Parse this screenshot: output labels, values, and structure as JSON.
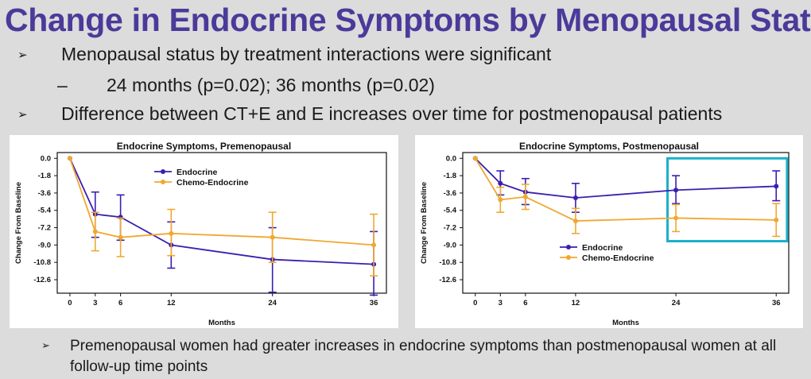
{
  "slide": {
    "title": "Change in Endocrine Symptoms by Menopausal Status",
    "bullets": [
      {
        "level": 1,
        "marker": "➢",
        "text": "Menopausal status by treatment interactions were significant"
      },
      {
        "level": 2,
        "marker": "–",
        "text": "24 months (p=0.02); 36 months (p=0.02)"
      },
      {
        "level": 1,
        "marker": "➢",
        "text": "Difference between CT+E and E increases over time for postmenopausal patients"
      }
    ],
    "footer_bullet": {
      "marker": "➢",
      "text": "Premenopausal women had greater increases in endocrine symptoms than postmenopausal women at all follow-up time points"
    }
  },
  "colors": {
    "endocrine": "#3a1fb0",
    "chemo_endocrine": "#f0a830",
    "highlight_box": "#1ab0c8",
    "title": "#4b3a9a"
  },
  "chart_data": [
    {
      "type": "line",
      "title": "Endocrine Symptoms, Premenopausal",
      "xlabel": "Months",
      "ylabel": "Change From Baseline",
      "x": [
        0,
        3,
        6,
        12,
        24,
        36
      ],
      "xticks": [
        "0",
        "3",
        "6",
        "12",
        "24",
        "36"
      ],
      "yticks": [
        "0.0",
        "-1.8",
        "-3.6",
        "-5.4",
        "-7.2",
        "-9.0",
        "-10.8",
        "-12.6"
      ],
      "yticks_values": [
        0.0,
        -1.8,
        -3.6,
        -5.4,
        -7.2,
        -9.0,
        -10.8,
        -12.6
      ],
      "ylim": [
        -14.0,
        0.6
      ],
      "xlim": [
        -1.5,
        37.5
      ],
      "legend": "top-left",
      "series": [
        {
          "name": "Endocrine",
          "color": "#3a1fb0",
          "values": [
            0.0,
            -5.8,
            -6.1,
            -9.0,
            -10.5,
            -11.0
          ],
          "lower": [
            0.0,
            -8.2,
            -8.5,
            -11.4,
            -13.9,
            -14.2
          ],
          "upper": [
            0.0,
            -3.5,
            -3.8,
            -6.6,
            -7.2,
            -7.6
          ]
        },
        {
          "name": "Chemo-Endocrine",
          "color": "#f0a830",
          "values": [
            0.0,
            -7.6,
            -8.2,
            -7.8,
            -8.2,
            -9.0
          ],
          "lower": [
            0.0,
            -9.6,
            -10.2,
            -10.1,
            -10.8,
            -12.2
          ],
          "upper": [
            0.0,
            -5.6,
            -6.2,
            -5.3,
            -5.6,
            -5.8
          ]
        }
      ]
    },
    {
      "type": "line",
      "title": "Endocrine Symptoms, Postmenopausal",
      "xlabel": "Months",
      "ylabel": "Change From Baseline",
      "x": [
        0,
        3,
        6,
        12,
        24,
        36
      ],
      "xticks": [
        "0",
        "3",
        "6",
        "12",
        "24",
        "36"
      ],
      "yticks": [
        "0.0",
        "-1.8",
        "-3.6",
        "-5.4",
        "-7.2",
        "-9.0",
        "-10.8",
        "-12.6"
      ],
      "yticks_values": [
        0.0,
        -1.8,
        -3.6,
        -5.4,
        -7.2,
        -9.0,
        -10.8,
        -12.6
      ],
      "ylim": [
        -14.0,
        0.6
      ],
      "xlim": [
        -1.5,
        37.5
      ],
      "legend": "bottom-left",
      "highlight": {
        "x_from": 23,
        "x_to": 37.3,
        "y_from": 0.0,
        "y_to": -8.6
      },
      "series": [
        {
          "name": "Endocrine",
          "color": "#3a1fb0",
          "values": [
            0.0,
            -2.6,
            -3.5,
            -4.1,
            -3.3,
            -2.9
          ],
          "lower": [
            0.0,
            -3.8,
            -4.8,
            -5.6,
            -4.7,
            -4.4
          ],
          "upper": [
            0.0,
            -1.3,
            -2.1,
            -2.6,
            -1.8,
            -1.3
          ]
        },
        {
          "name": "Chemo-Endocrine",
          "color": "#f0a830",
          "values": [
            0.0,
            -4.3,
            -4.0,
            -6.5,
            -6.2,
            -6.4
          ],
          "lower": [
            0.0,
            -5.6,
            -5.3,
            -7.8,
            -7.6,
            -8.1
          ],
          "upper": [
            0.0,
            -3.0,
            -2.7,
            -5.2,
            -4.8,
            -4.7
          ]
        }
      ]
    }
  ]
}
